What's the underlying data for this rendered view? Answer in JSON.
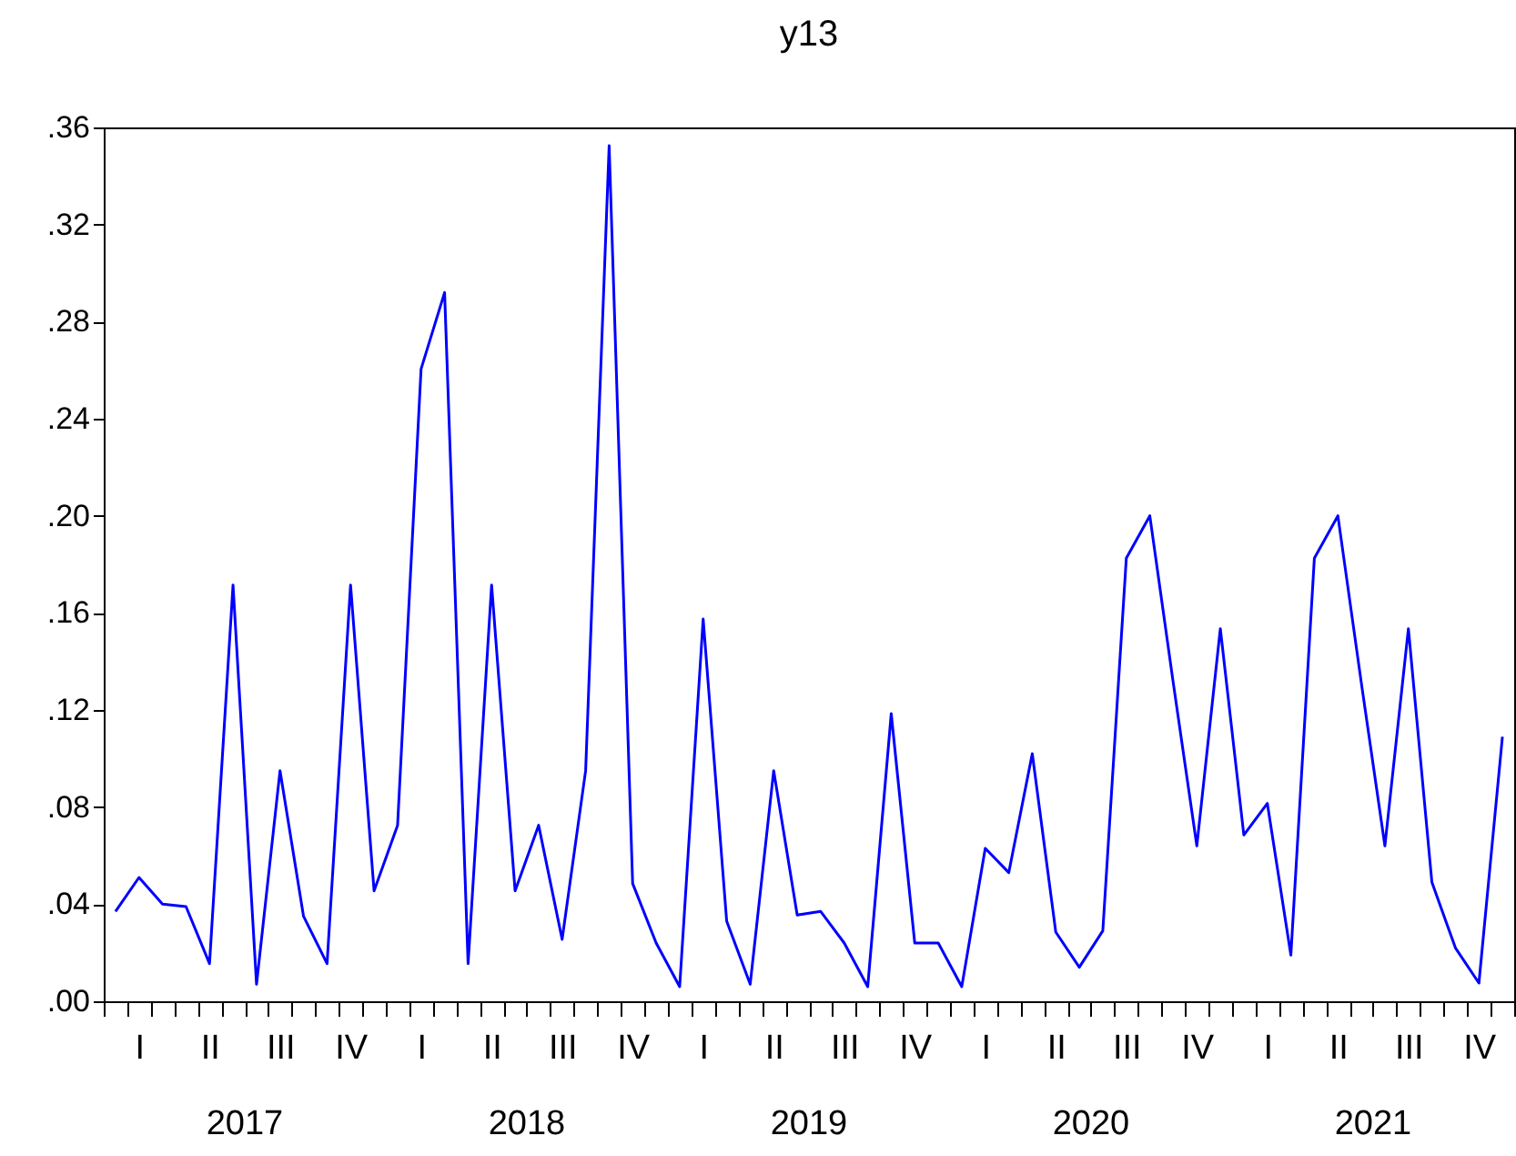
{
  "chart_data": {
    "type": "line",
    "title": "y13",
    "categories": [
      null,
      "I",
      null,
      null,
      "II",
      null,
      null,
      "III",
      null,
      null,
      "IV",
      null,
      null,
      "I",
      null,
      null,
      "II",
      null,
      null,
      "III",
      null,
      null,
      "IV",
      null,
      null,
      "I",
      null,
      null,
      "II",
      null,
      null,
      "III",
      null,
      null,
      "IV",
      null,
      null,
      "I",
      null,
      null,
      "II",
      null,
      null,
      "III",
      null,
      null,
      "IV",
      null,
      null,
      "I",
      null,
      null,
      "II",
      null,
      null,
      "III",
      null,
      null,
      "IV",
      null
    ],
    "series": [
      {
        "color": "#0000ff",
        "values": [
          0.037,
          0.051,
          0.04,
          0.039,
          0.0155,
          0.1715,
          0.007,
          0.095,
          0.035,
          0.0155,
          0.1715,
          0.0455,
          0.0725,
          0.2605,
          0.292,
          0.0155,
          0.1715,
          0.0455,
          0.0725,
          0.0255,
          0.095,
          0.3525,
          0.0485,
          0.024,
          0.006,
          0.1575,
          0.033,
          0.007,
          0.095,
          0.0355,
          0.037,
          0.024,
          0.006,
          0.1185,
          0.024,
          0.024,
          0.006,
          0.063,
          0.053,
          0.102,
          0.0285,
          0.014,
          0.029,
          0.1825,
          0.2,
          0.131,
          0.064,
          0.1535,
          0.0685,
          0.0815,
          0.019,
          0.1825,
          0.2,
          0.131,
          0.064,
          0.1535,
          0.049,
          0.022,
          0.0075,
          0.109
        ]
      }
    ],
    "ylim": [
      0,
      0.36
    ],
    "yticks": [
      {
        "value": 0,
        "label": ".00"
      },
      {
        "value": 0.04,
        "label": ".04"
      },
      {
        "value": 0.08,
        "label": ".08"
      },
      {
        "value": 0.12,
        "label": ".12"
      },
      {
        "value": 0.16,
        "label": ".16"
      },
      {
        "value": 0.2,
        "label": ".20"
      },
      {
        "value": 0.24,
        "label": ".24"
      },
      {
        "value": 0.28,
        "label": ".28"
      },
      {
        "value": 0.32,
        "label": ".32"
      },
      {
        "value": 0.36,
        "label": ".36"
      }
    ],
    "annotations": [
      "2017",
      "2018",
      "2019",
      "2020",
      "2021"
    ],
    "grid": false
  }
}
